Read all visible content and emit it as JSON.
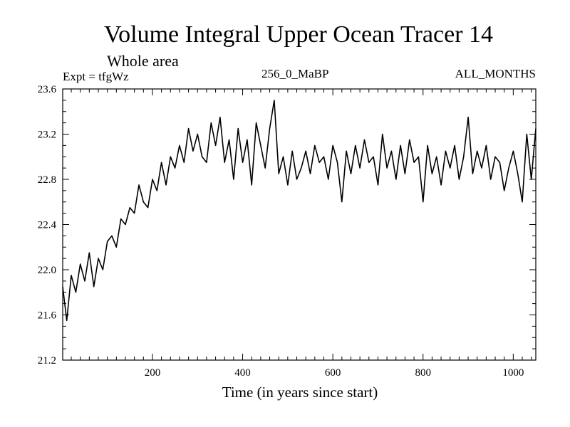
{
  "chart_data": {
    "type": "line",
    "title": "Volume Integral Upper Ocean Tracer 14",
    "subtitle": "Whole area",
    "experiment": "Expt = tfgWz",
    "period_label": "256_0_MaBP",
    "months_label": "ALL_MONTHS",
    "xlabel": "Time (in years since start)",
    "ylabel": "",
    "xlim": [
      1,
      1050
    ],
    "ylim": [
      21.2,
      23.6
    ],
    "x_ticks": [
      200,
      400,
      600,
      800,
      1000
    ],
    "y_ticks": [
      21.2,
      21.6,
      22.0,
      22.4,
      22.8,
      23.2,
      23.6
    ],
    "y_tick_labels": [
      "21.2",
      "21.6",
      "22.0",
      "22.4",
      "22.8",
      "23.2",
      "23.6"
    ],
    "grid": false,
    "series": [
      {
        "name": "Volume Integral Upper Ocean Tracer 14",
        "x": [
          1,
          10,
          20,
          30,
          40,
          50,
          60,
          70,
          80,
          90,
          100,
          110,
          120,
          130,
          140,
          150,
          160,
          170,
          180,
          190,
          200,
          210,
          220,
          230,
          240,
          250,
          260,
          270,
          280,
          290,
          300,
          310,
          320,
          330,
          340,
          350,
          360,
          370,
          380,
          390,
          400,
          410,
          420,
          430,
          440,
          450,
          460,
          470,
          480,
          490,
          500,
          510,
          520,
          530,
          540,
          550,
          560,
          570,
          580,
          590,
          600,
          610,
          620,
          630,
          640,
          650,
          660,
          670,
          680,
          690,
          700,
          710,
          720,
          730,
          740,
          750,
          760,
          770,
          780,
          790,
          800,
          810,
          820,
          830,
          840,
          850,
          860,
          870,
          880,
          890,
          900,
          910,
          920,
          930,
          940,
          950,
          960,
          970,
          980,
          990,
          1000,
          1010,
          1020,
          1030,
          1040,
          1050
        ],
        "values": [
          21.85,
          21.55,
          21.95,
          21.8,
          22.05,
          21.9,
          22.15,
          21.85,
          22.1,
          22.0,
          22.25,
          22.3,
          22.2,
          22.45,
          22.4,
          22.55,
          22.5,
          22.75,
          22.6,
          22.55,
          22.8,
          22.7,
          22.95,
          22.75,
          23.0,
          22.9,
          23.1,
          22.95,
          23.25,
          23.05,
          23.2,
          23.0,
          22.95,
          23.3,
          23.1,
          23.35,
          22.95,
          23.15,
          22.8,
          23.25,
          22.95,
          23.15,
          22.75,
          23.3,
          23.1,
          22.9,
          23.25,
          23.5,
          22.85,
          23.0,
          22.75,
          23.05,
          22.8,
          22.9,
          23.05,
          22.85,
          23.1,
          22.95,
          23.0,
          22.8,
          23.1,
          22.95,
          22.6,
          23.05,
          22.85,
          23.1,
          22.9,
          23.15,
          22.95,
          23.0,
          22.75,
          23.2,
          22.9,
          23.05,
          22.8,
          23.1,
          22.85,
          23.15,
          22.95,
          23.0,
          22.6,
          23.1,
          22.85,
          23.0,
          22.75,
          23.05,
          22.9,
          23.1,
          22.8,
          23.0,
          23.35,
          22.85,
          23.05,
          22.9,
          23.1,
          22.8,
          23.0,
          22.95,
          22.7,
          22.9,
          23.05,
          22.85,
          22.6,
          23.2,
          22.8,
          23.25
        ]
      }
    ]
  }
}
